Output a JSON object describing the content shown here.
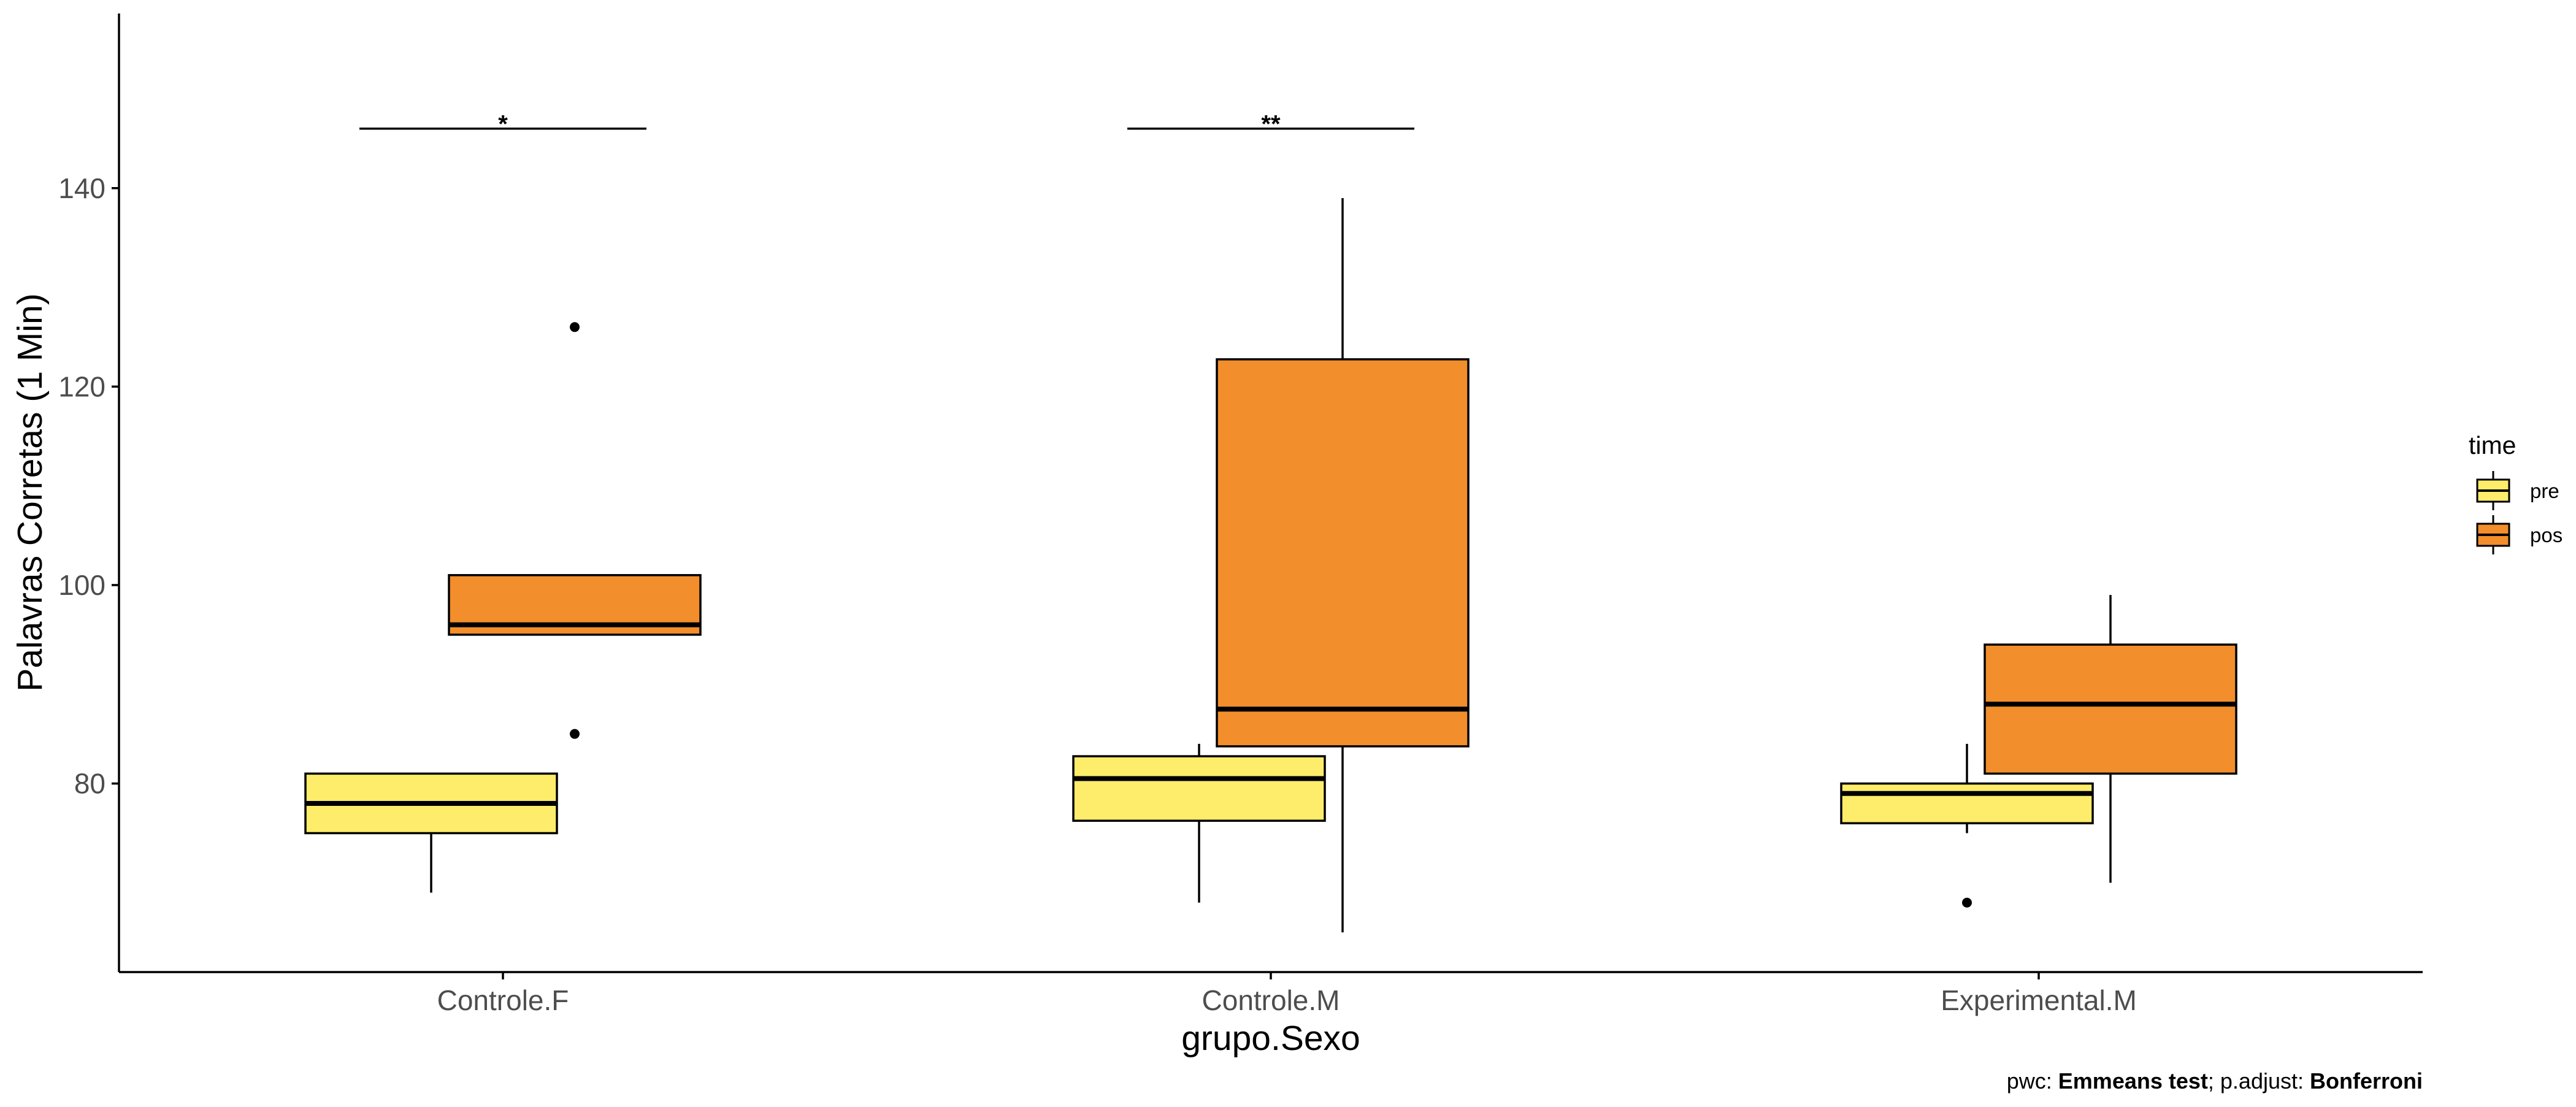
{
  "chart_data": {
    "type": "box",
    "title": "",
    "xlabel": "grupo.Sexo",
    "ylabel": "Palavras Corretas (1 Min)",
    "ylim": [
      61,
      157.6
    ],
    "yticks": [
      "80",
      "100",
      "120",
      "140"
    ],
    "categories": [
      "Controle.F",
      "Controle.M",
      "Experimental.M"
    ],
    "legend": {
      "title": "time",
      "position": "right",
      "entries": [
        {
          "label": "pre",
          "color": "#FDED6A"
        },
        {
          "label": "pos",
          "color": "#F28E2B"
        }
      ]
    },
    "series": [
      {
        "name": "pre",
        "color": "#FDED6A",
        "boxes": [
          {
            "category": "Controle.F",
            "lower_whisker": 69,
            "q1": 75,
            "median": 78,
            "q3": 81,
            "upper_whisker": 81,
            "outliers": []
          },
          {
            "category": "Controle.M",
            "lower_whisker": 68,
            "q1": 76.25,
            "median": 80.5,
            "q3": 82.75,
            "upper_whisker": 84,
            "outliers": []
          },
          {
            "category": "Experimental.M",
            "lower_whisker": 75,
            "q1": 76,
            "median": 79,
            "q3": 80,
            "upper_whisker": 84,
            "outliers": [
              68
            ]
          }
        ]
      },
      {
        "name": "pos",
        "color": "#F28E2B",
        "boxes": [
          {
            "category": "Controle.F",
            "lower_whisker": 95,
            "q1": 95,
            "median": 96,
            "q3": 101,
            "upper_whisker": 101,
            "outliers": [
              126,
              85
            ]
          },
          {
            "category": "Controle.M",
            "lower_whisker": 65,
            "q1": 83.75,
            "median": 87.5,
            "q3": 122.75,
            "upper_whisker": 139,
            "outliers": []
          },
          {
            "category": "Experimental.M",
            "lower_whisker": 70,
            "q1": 81,
            "median": 88,
            "q3": 94,
            "upper_whisker": 99,
            "outliers": []
          }
        ]
      }
    ],
    "significance": [
      {
        "category": "Controle.F",
        "y": 146,
        "label": "*"
      },
      {
        "category": "Controle.M",
        "y": 146,
        "label": "**"
      }
    ],
    "caption": {
      "prefix1": "pwc: ",
      "bold1": "Emmeans test",
      "prefix2": "; p.adjust: ",
      "bold2": "Bonferroni"
    },
    "grid": false
  }
}
